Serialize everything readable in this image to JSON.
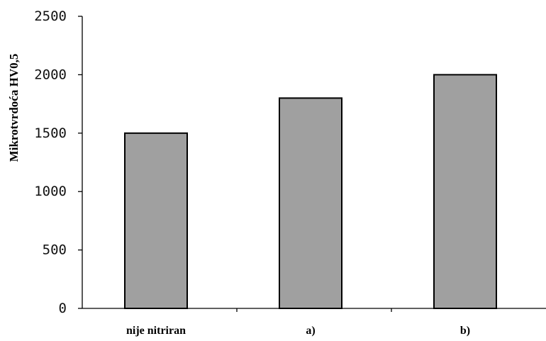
{
  "chart_data": {
    "type": "bar",
    "title": "",
    "xlabel": "",
    "ylabel": "Mikrotvrdoća HV0,5",
    "categories": [
      "nije nitriran",
      "a)",
      "b)"
    ],
    "values": [
      1500,
      1800,
      2000
    ],
    "ylim": [
      0,
      2500
    ],
    "yticks": [
      "0",
      "500",
      "1000",
      "1500",
      "2000",
      "2500"
    ],
    "grid": false,
    "legend": "none",
    "colors": {
      "bar_fill": "#a0a0a0",
      "bar_stroke": "#000000",
      "axis": "#000000"
    }
  }
}
